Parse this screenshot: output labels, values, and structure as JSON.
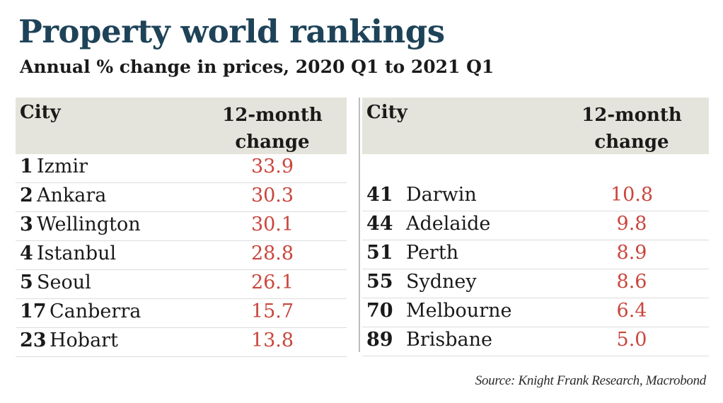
{
  "title": "Property world rankings",
  "subtitle": "Annual % change in prices, 2020 Q1 to 2021 Q1",
  "table_left": {
    "col_city": "City",
    "col_change_line1": "12-month",
    "col_change_line2": "change",
    "rows": [
      {
        "rank": "1",
        "city": "Izmir",
        "change": "33.9"
      },
      {
        "rank": "2",
        "city": "Ankara",
        "change": "30.3"
      },
      {
        "rank": "3",
        "city": "Wellington",
        "change": "30.1"
      },
      {
        "rank": "4",
        "city": "Istanbul",
        "change": "28.8"
      },
      {
        "rank": "5",
        "city": "Seoul",
        "change": "26.1"
      },
      {
        "rank": "17",
        "city": "Canberra",
        "change": "15.7"
      },
      {
        "rank": "23",
        "city": "Hobart",
        "change": "13.8"
      }
    ]
  },
  "table_right": {
    "col_city": "City",
    "col_change_line1": "12-month",
    "col_change_line2": "change",
    "rows": [
      {
        "rank": "41",
        "city": "Darwin",
        "change": "10.8"
      },
      {
        "rank": "44",
        "city": "Adelaide",
        "change": "9.8"
      },
      {
        "rank": "51",
        "city": "Perth",
        "change": "8.9"
      },
      {
        "rank": "55",
        "city": "Sydney",
        "change": "8.6"
      },
      {
        "rank": "70",
        "city": "Melbourne",
        "change": "6.4"
      },
      {
        "rank": "89",
        "city": "Brisbane",
        "change": "5.0"
      }
    ]
  },
  "source": "Source: Knight Frank Research, Macrobond",
  "colors": {
    "title": "#1e4358",
    "value": "#c9463d",
    "header_bg": "#e5e4dc"
  },
  "chart_data": {
    "type": "table",
    "title": "Property world rankings",
    "subtitle": "Annual % change in prices, 2020 Q1 to 2021 Q1",
    "columns": [
      "City",
      "12-month change"
    ],
    "rows": [
      {
        "rank": 1,
        "city": "Izmir",
        "change": 33.9
      },
      {
        "rank": 2,
        "city": "Ankara",
        "change": 30.3
      },
      {
        "rank": 3,
        "city": "Wellington",
        "change": 30.1
      },
      {
        "rank": 4,
        "city": "Istanbul",
        "change": 28.8
      },
      {
        "rank": 5,
        "city": "Seoul",
        "change": 26.1
      },
      {
        "rank": 17,
        "city": "Canberra",
        "change": 15.7
      },
      {
        "rank": 23,
        "city": "Hobart",
        "change": 13.8
      },
      {
        "rank": 41,
        "city": "Darwin",
        "change": 10.8
      },
      {
        "rank": 44,
        "city": "Adelaide",
        "change": 9.8
      },
      {
        "rank": 51,
        "city": "Perth",
        "change": 8.9
      },
      {
        "rank": 55,
        "city": "Sydney",
        "change": 8.6
      },
      {
        "rank": 70,
        "city": "Melbourne",
        "change": 6.4
      },
      {
        "rank": 89,
        "city": "Brisbane",
        "change": 5.0
      }
    ]
  }
}
